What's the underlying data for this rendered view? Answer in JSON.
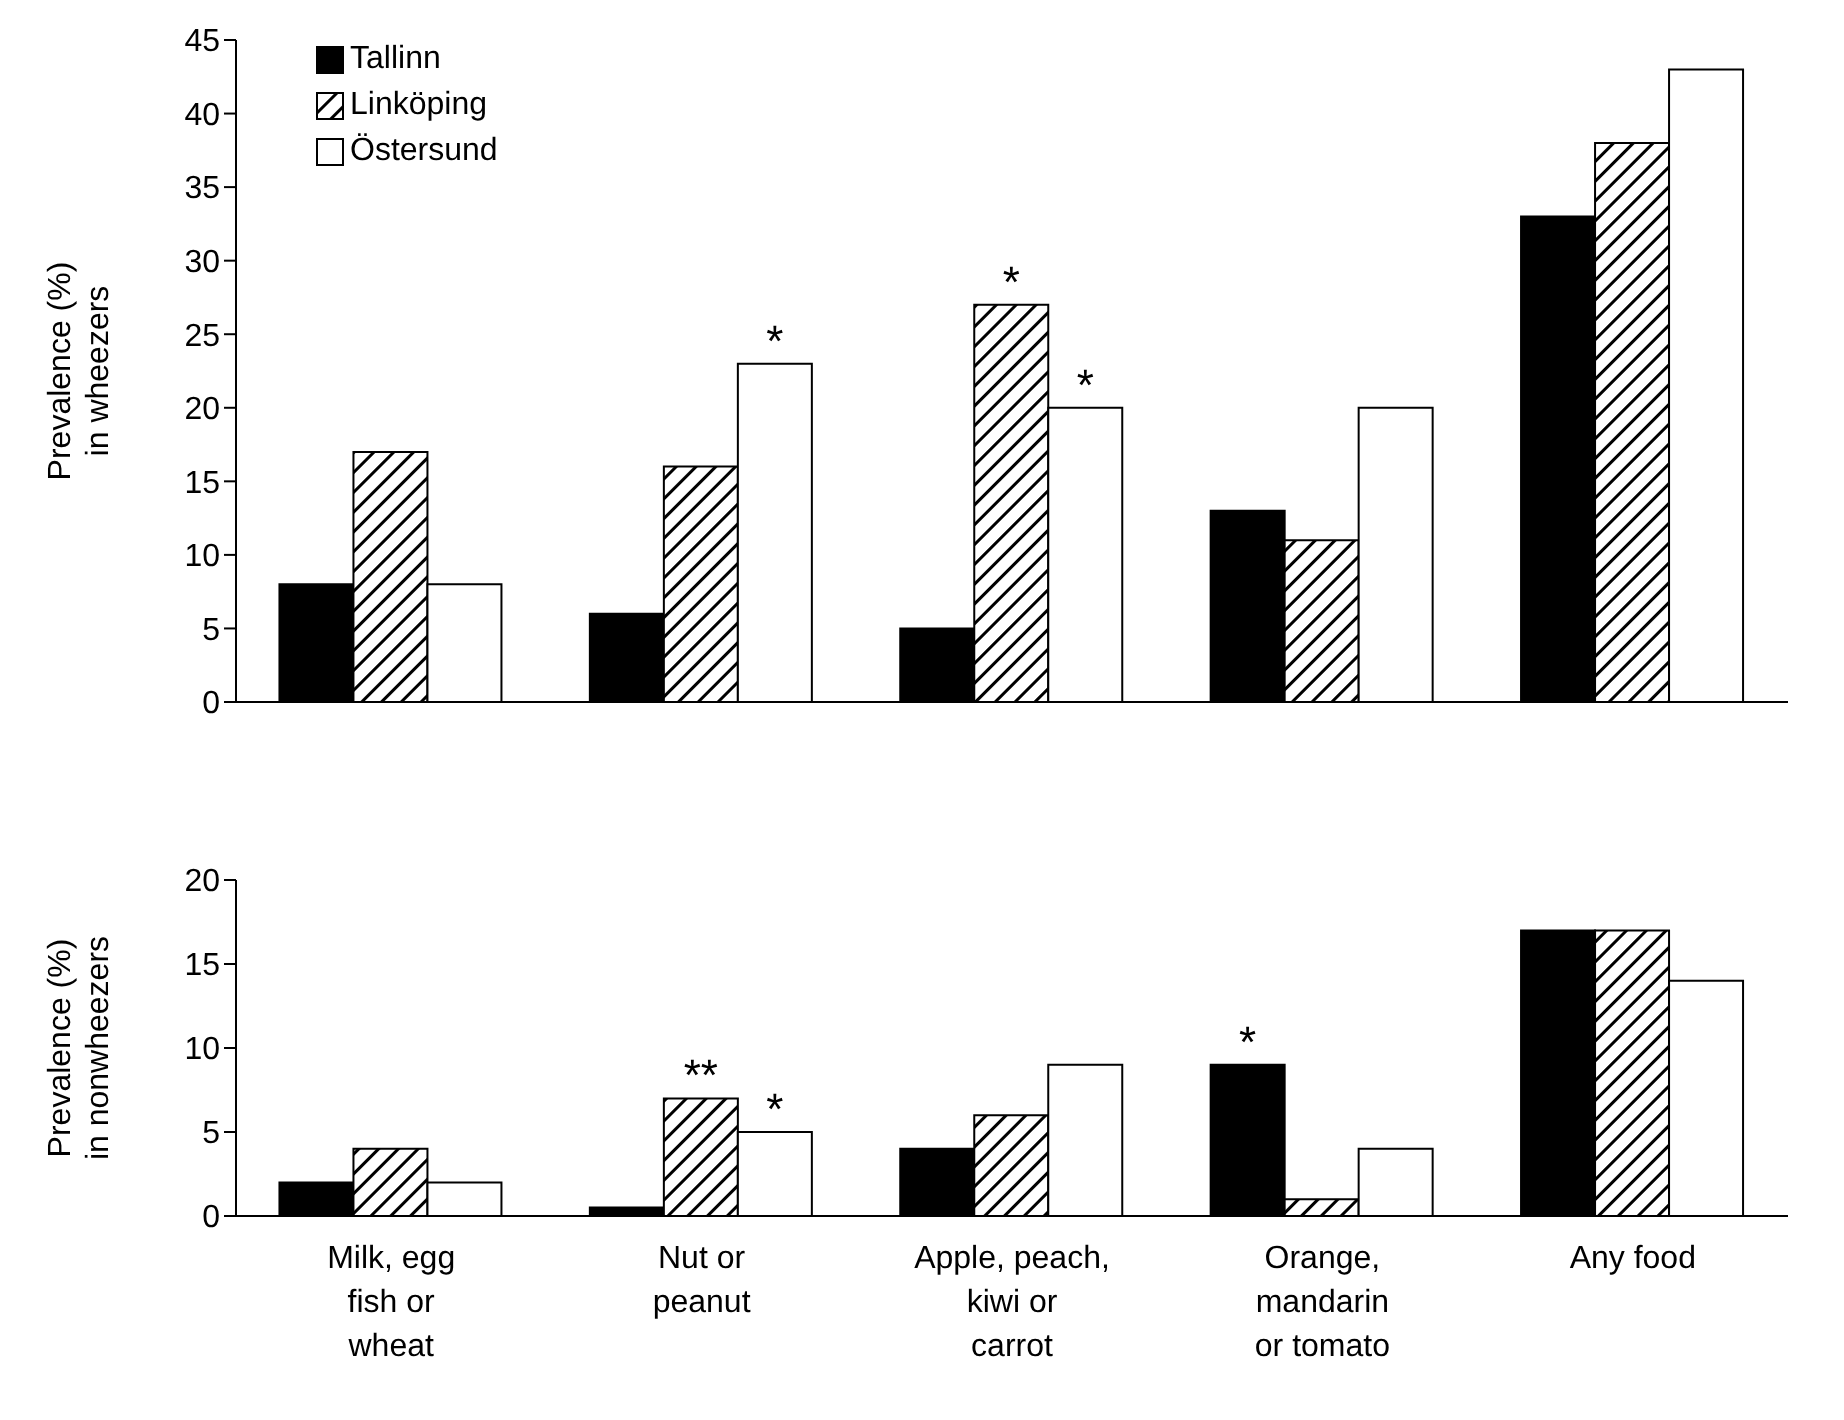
{
  "chart_data": [
    {
      "type": "bar",
      "ylabel": "Prevalence (%)\nin wheezers",
      "categories": [
        null,
        null,
        null,
        null,
        null
      ],
      "series": [
        {
          "name": "Tallinn",
          "color": "#000000",
          "values": [
            8,
            6,
            5,
            13,
            33
          ]
        },
        {
          "name": "Linköping",
          "color": "#000000",
          "values": [
            17,
            16,
            27,
            11,
            38
          ],
          "value_labels": [
            null,
            null,
            "*",
            null,
            null
          ]
        },
        {
          "name": "Östersund",
          "color": "#ffffff",
          "values": [
            8,
            23,
            20,
            20,
            43
          ],
          "value_labels": [
            null,
            "*",
            "*",
            null,
            null
          ]
        }
      ],
      "ylim": [
        0,
        45
      ],
      "yticks": [
        0,
        5,
        10,
        15,
        20,
        25,
        30,
        35,
        40,
        45
      ],
      "tick_labels": "y",
      "legend": "top left",
      "grid": false
    },
    {
      "type": "bar",
      "ylabel": "Prevalence (%)\nin nonwheezers",
      "categories": [
        "Milk, egg\nfish or\nwheat",
        "Nut or\npeanut",
        "Apple, peach,\nkiwi or\ncarrot",
        "Orange,\nmandarin\nor tomato",
        "Any food"
      ],
      "series": [
        {
          "color": "#000000",
          "values": [
            2,
            0.5,
            4,
            9,
            17
          ],
          "value_labels": [
            null,
            null,
            null,
            "*",
            null
          ]
        },
        {
          "color": "#000000",
          "values": [
            4,
            7,
            6,
            1,
            17
          ],
          "value_labels": [
            null,
            "**",
            null,
            null,
            null
          ]
        },
        {
          "color": "#ffffff",
          "values": [
            2,
            5,
            9,
            4,
            14
          ],
          "value_labels": [
            null,
            "*",
            null,
            null,
            null
          ]
        }
      ],
      "ylim": [
        0,
        20
      ],
      "yticks": [
        0,
        5,
        10,
        15,
        20
      ],
      "legend": false,
      "grid": false
    }
  ]
}
